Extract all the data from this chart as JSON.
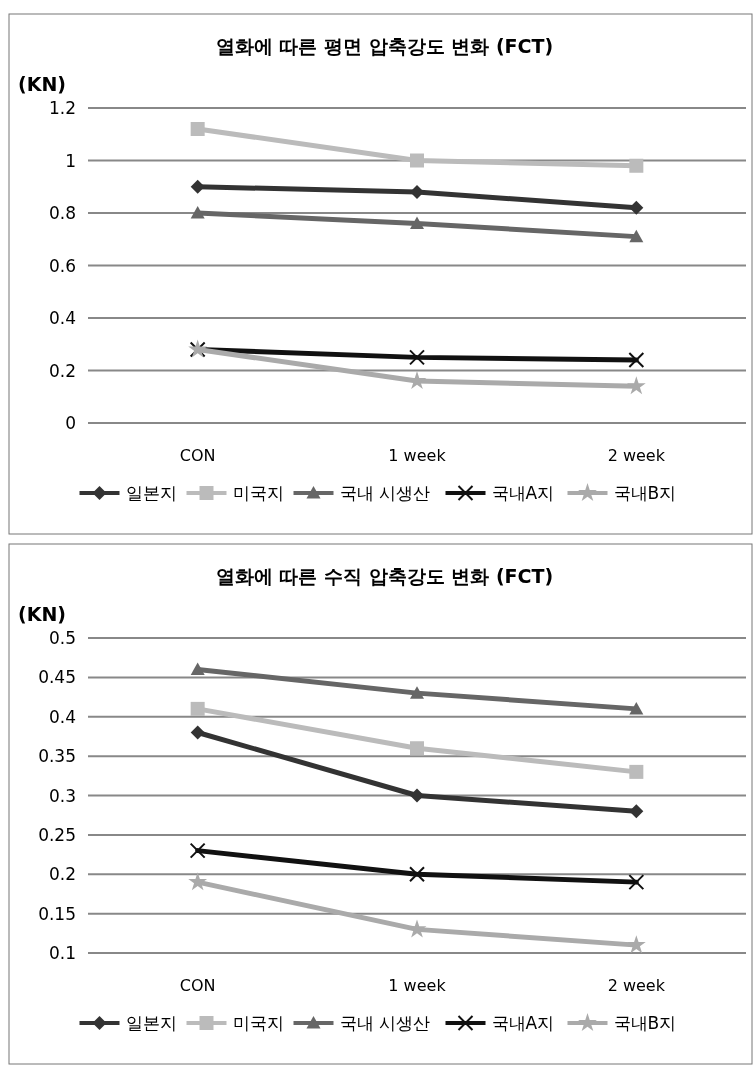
{
  "chart_data": [
    {
      "type": "line",
      "title": "열화에 따른 평면 압축강도 변화 (FCT)",
      "ylabel": "(KN)",
      "categories": [
        "CON",
        "1 week",
        "2 week"
      ],
      "ylim": [
        0,
        1.2
      ],
      "yticks": [
        0,
        0.2,
        0.4,
        0.6,
        0.8,
        1,
        1.2
      ],
      "grid": "y",
      "legend": "bottom",
      "series": [
        {
          "name": "일본지",
          "color": "#333333",
          "marker": "diamond",
          "values": [
            0.9,
            0.88,
            0.82
          ]
        },
        {
          "name": "미국지",
          "color": "#bbbbbb",
          "marker": "square",
          "values": [
            1.12,
            1.0,
            0.98
          ]
        },
        {
          "name": "국내 시생산",
          "color": "#666666",
          "marker": "triangle",
          "values": [
            0.8,
            0.76,
            0.71
          ]
        },
        {
          "name": "국내A지",
          "color": "#111111",
          "marker": "cross",
          "values": [
            0.28,
            0.25,
            0.24
          ]
        },
        {
          "name": "국내B지",
          "color": "#aaaaaa",
          "marker": "star",
          "values": [
            0.28,
            0.16,
            0.14
          ]
        }
      ]
    },
    {
      "type": "line",
      "title": "열화에 따른 수직 압축강도 변화 (FCT)",
      "ylabel": "(KN)",
      "categories": [
        "CON",
        "1 week",
        "2 week"
      ],
      "ylim": [
        0.1,
        0.5
      ],
      "yticks": [
        0.1,
        0.15,
        0.2,
        0.25,
        0.3,
        0.35,
        0.4,
        0.45,
        0.5
      ],
      "grid": "y",
      "legend": "bottom",
      "series": [
        {
          "name": "일본지",
          "color": "#333333",
          "marker": "diamond",
          "values": [
            0.38,
            0.3,
            0.28
          ]
        },
        {
          "name": "미국지",
          "color": "#bbbbbb",
          "marker": "square",
          "values": [
            0.41,
            0.36,
            0.33
          ]
        },
        {
          "name": "국내 시생산",
          "color": "#666666",
          "marker": "triangle",
          "values": [
            0.46,
            0.43,
            0.41
          ]
        },
        {
          "name": "국내A지",
          "color": "#111111",
          "marker": "cross",
          "values": [
            0.23,
            0.2,
            0.19
          ]
        },
        {
          "name": "국내B지",
          "color": "#aaaaaa",
          "marker": "star",
          "values": [
            0.19,
            0.13,
            0.11
          ]
        }
      ]
    }
  ]
}
